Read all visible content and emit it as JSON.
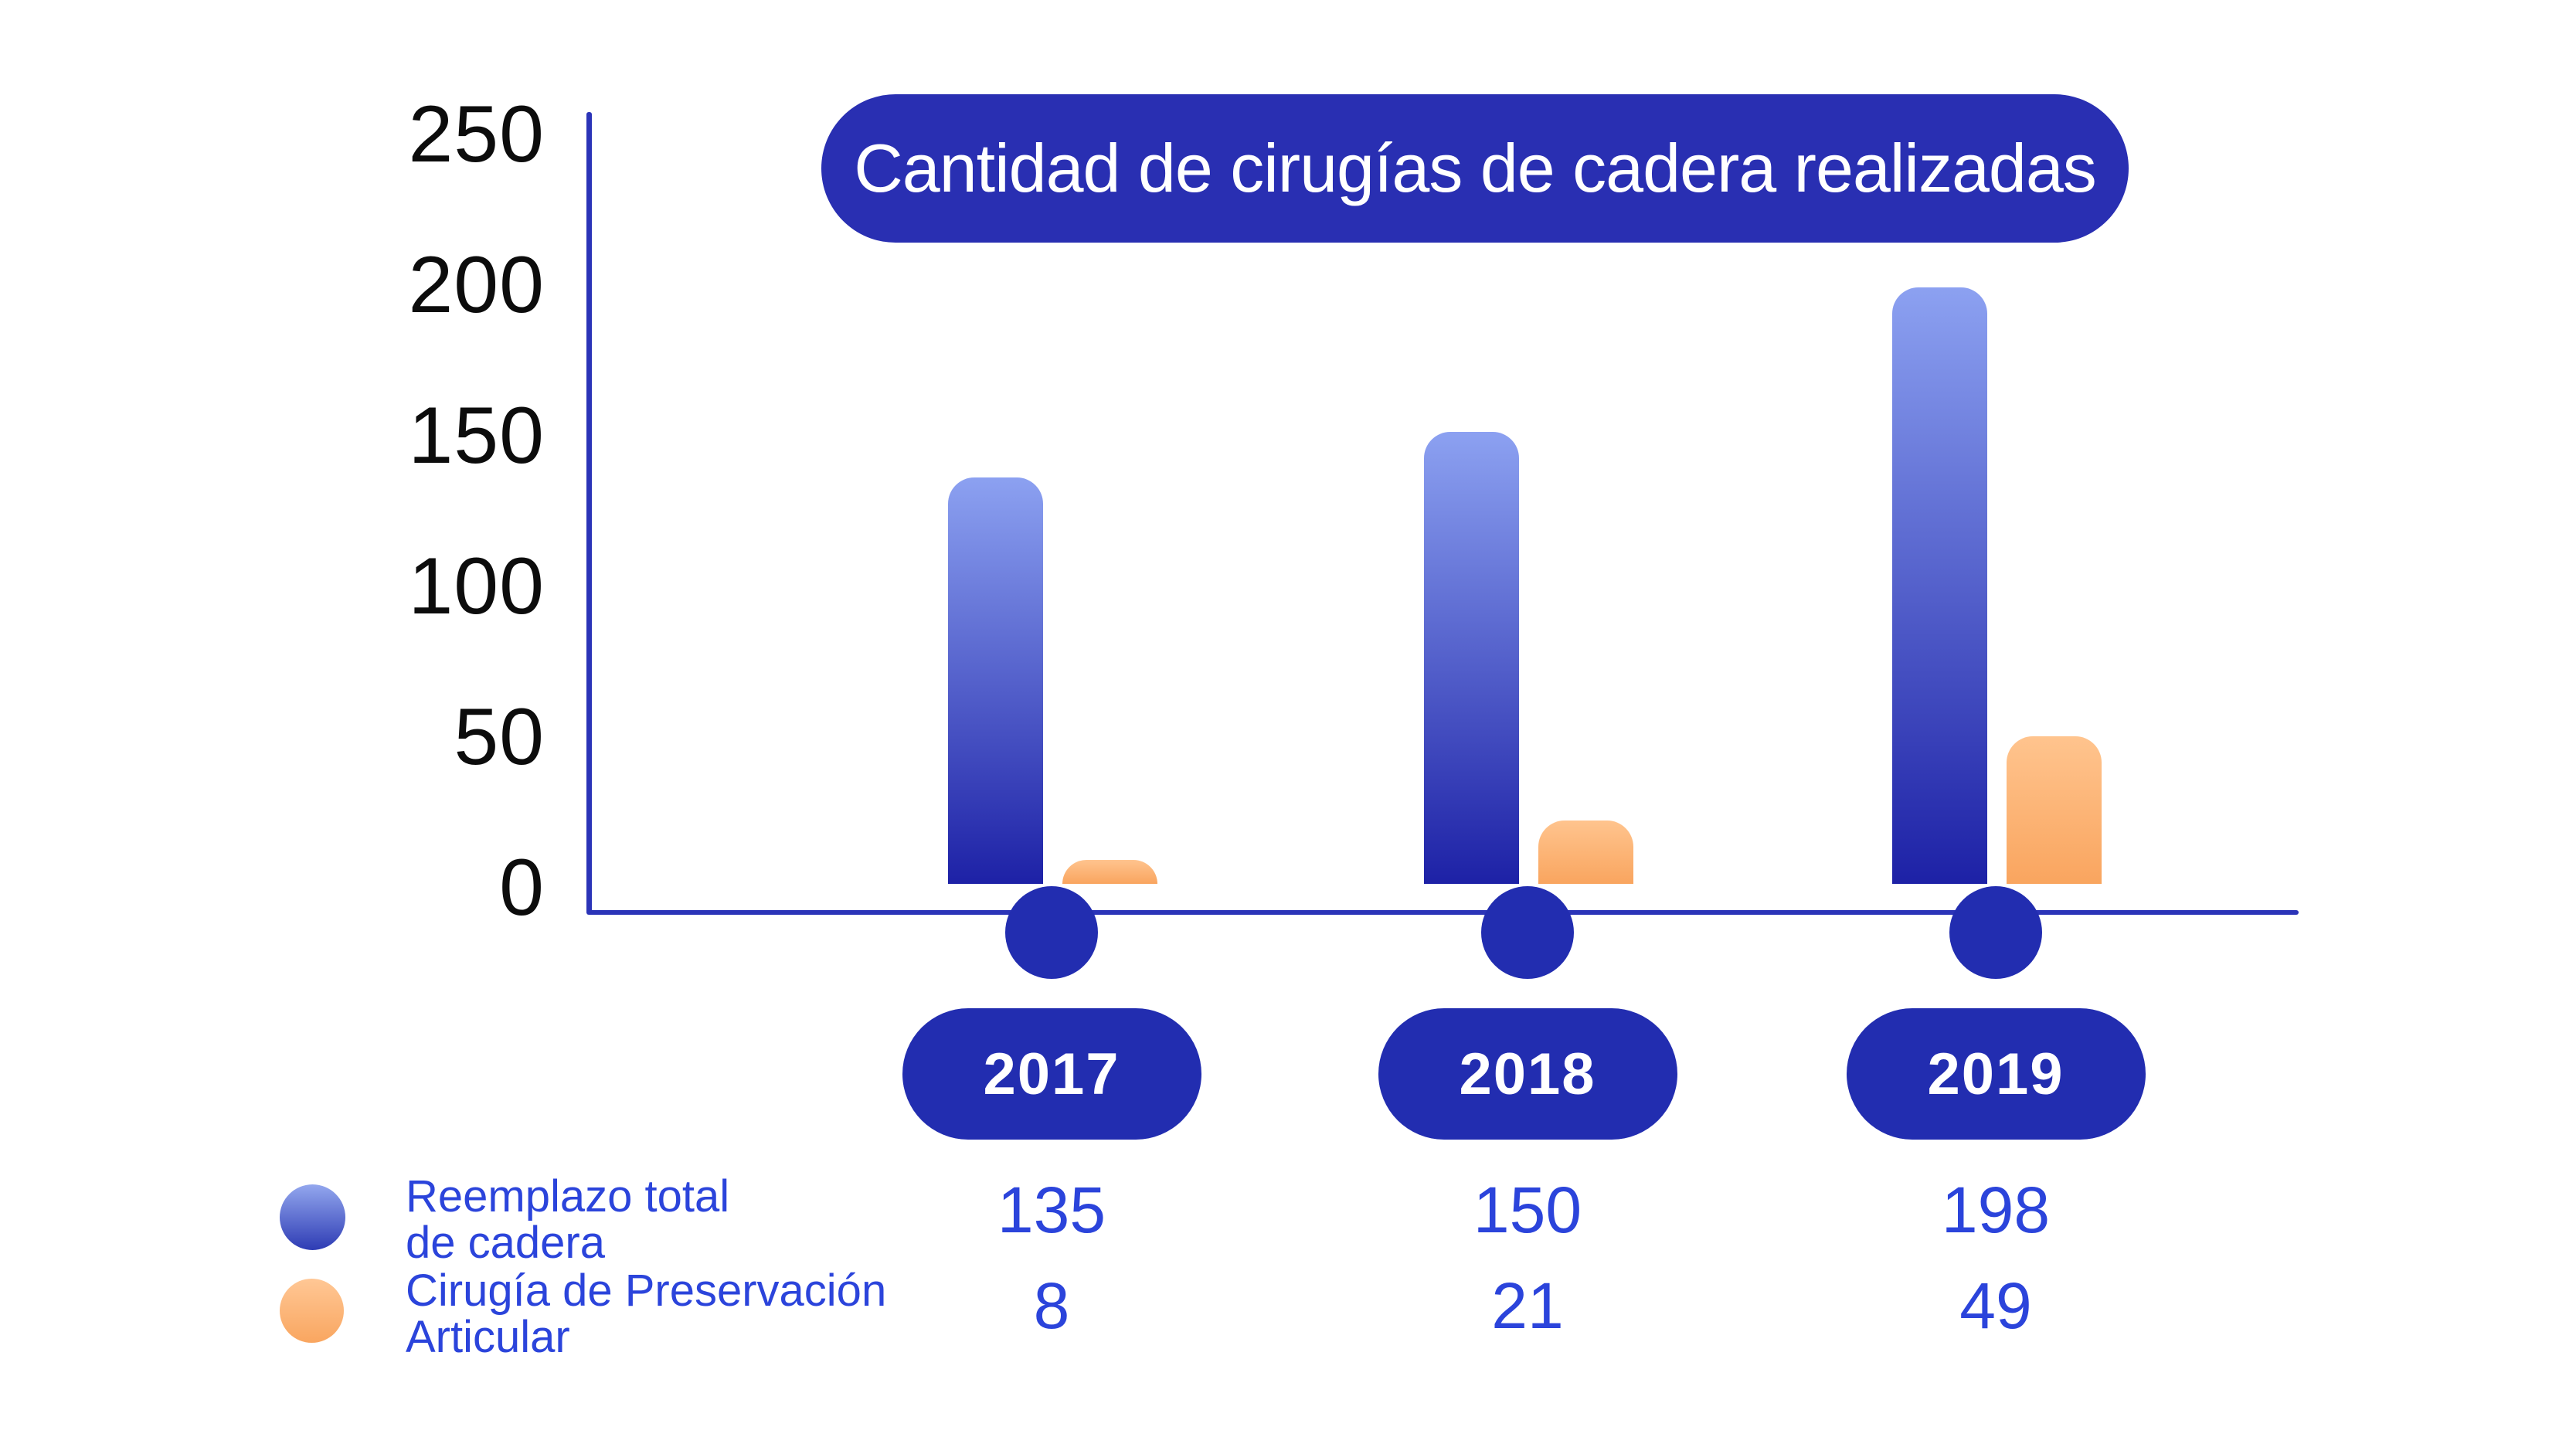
{
  "title": "Cantidad de cirugías de cadera realizadas",
  "chart_data": {
    "type": "bar",
    "title": "Cantidad de cirugías de cadera realizadas",
    "categories": [
      "2017",
      "2018",
      "2019"
    ],
    "series": [
      {
        "name": "Reemplazo total de cadera",
        "values": [
          135,
          150,
          198
        ]
      },
      {
        "name": "Cirugía de Preservación Articular",
        "values": [
          8,
          21,
          49
        ]
      }
    ],
    "yticks": [
      250,
      200,
      150,
      100,
      50,
      0
    ],
    "ylim": [
      0,
      250
    ],
    "xlabel": "",
    "ylabel": "",
    "grid": false,
    "legend_position": "bottom-left"
  },
  "legend": {
    "items": [
      {
        "lines": [
          "Reemplazo total",
          "de cadera"
        ]
      },
      {
        "lines": [
          "Cirugía de Preservación",
          "Articular"
        ]
      }
    ]
  },
  "colors": {
    "axis": "#2b34b8",
    "pill": "#222db0",
    "title_pill": "#292fb2",
    "bar_blue_top": "#8ca1f1",
    "bar_blue_bottom": "#1d21a6",
    "bar_orange_top": "#ffc48e",
    "bar_orange_bottom": "#f9a55f",
    "text_blue": "#2b44db",
    "tick_text": "#0c0c0c",
    "title_text": "#ffffff"
  }
}
